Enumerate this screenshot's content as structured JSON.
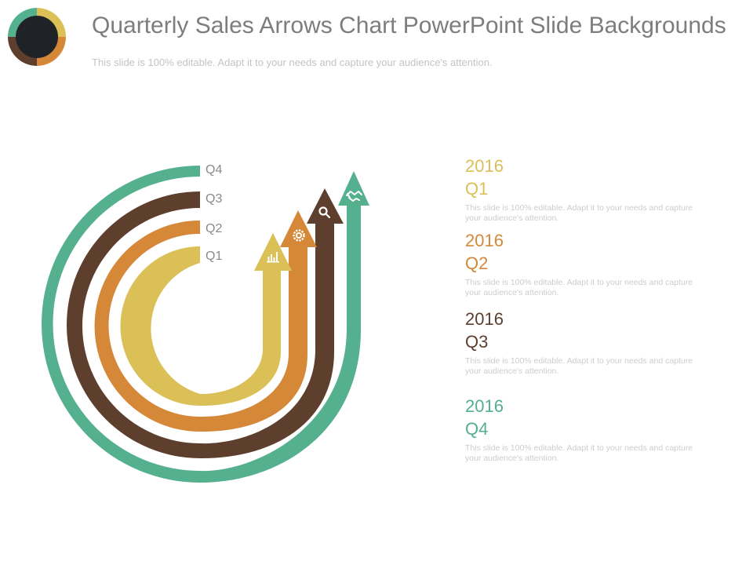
{
  "header": {
    "title": "Quarterly Sales Arrows Chart PowerPoint Slide Backgrounds",
    "subtitle": "This slide is 100% editable. Adapt it to your needs and capture your audience's attention."
  },
  "colors": {
    "q1": "#dbbf57",
    "q2": "#d68839",
    "q3": "#5e3f2e",
    "q4": "#54b08e"
  },
  "arrows": [
    {
      "label": "Q1",
      "icon": "bar-chart-icon"
    },
    {
      "label": "Q2",
      "icon": "gear-icon"
    },
    {
      "label": "Q3",
      "icon": "magnifier-icon"
    },
    {
      "label": "Q4",
      "icon": "handshake-icon"
    }
  ],
  "entries": [
    {
      "year": "2016",
      "quarter": "Q1",
      "text": "This slide is 100% editable. Adapt it to your needs and capture your audience's attention."
    },
    {
      "year": "2016",
      "quarter": "Q2",
      "text": "This slide is 100% editable. Adapt it to your needs and capture your audience's attention."
    },
    {
      "year": "2016",
      "quarter": "Q3",
      "text": "This slide is 100% editable. Adapt it to your needs and capture your audience's attention."
    },
    {
      "year": "2016",
      "quarter": "Q4",
      "text": "This slide is 100% editable. Adapt it to your needs and capture your audience's attention."
    }
  ]
}
